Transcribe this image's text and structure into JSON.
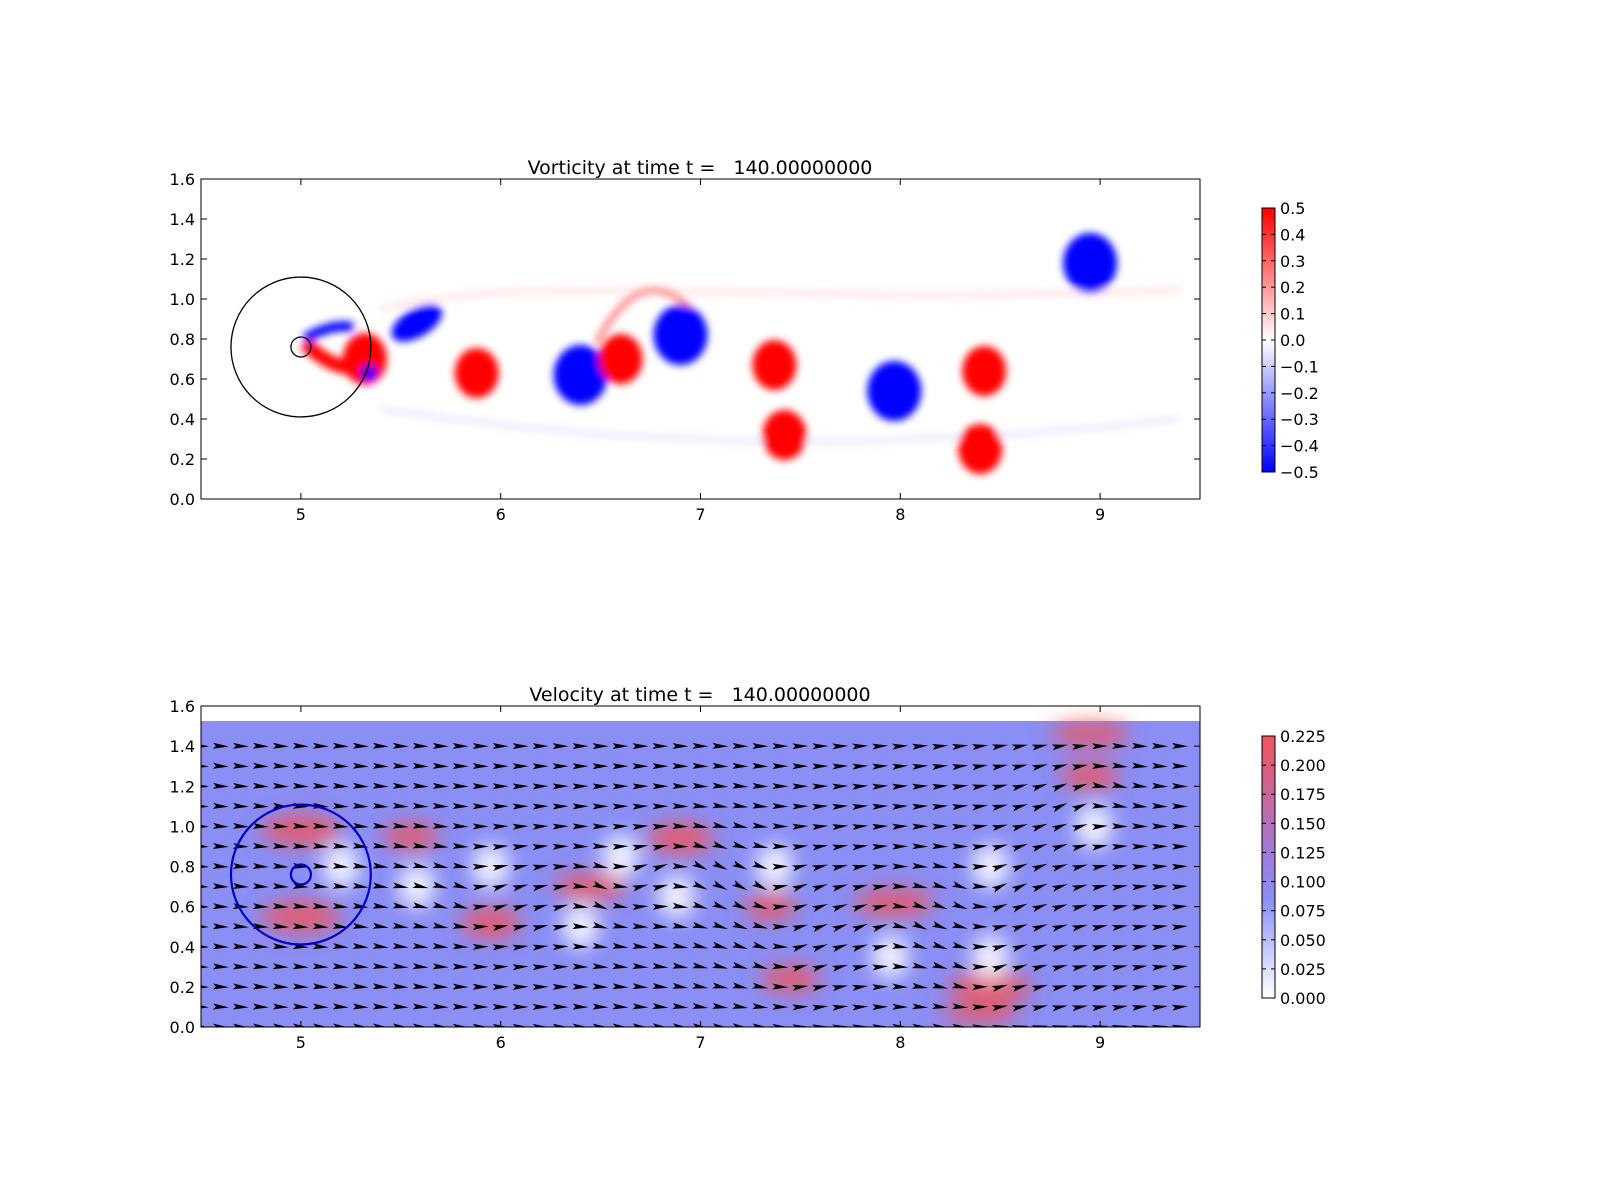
{
  "chart_data": [
    {
      "type": "heatmap",
      "title": "Vorticity at time t =   140.00000000",
      "xlim": [
        4.5,
        9.5
      ],
      "ylim": [
        0.0,
        1.6
      ],
      "xticks": [
        "5",
        "6",
        "7",
        "8",
        "9"
      ],
      "yticks": [
        "0.0",
        "0.2",
        "0.4",
        "0.6",
        "0.8",
        "1.0",
        "1.2",
        "1.4",
        "1.6"
      ],
      "colorbar": {
        "range": [
          -0.5,
          0.5
        ],
        "colormap": "bwr",
        "ticks": [
          "0.5",
          "0.4",
          "0.3",
          "0.2",
          "0.1",
          "0.0",
          "−0.1",
          "−0.2",
          "−0.3",
          "−0.4",
          "−0.5"
        ]
      },
      "vortices": [
        {
          "x": 5.88,
          "y": 0.63,
          "sign": "positive"
        },
        {
          "x": 6.4,
          "y": 0.62,
          "sign": "negative"
        },
        {
          "x": 6.6,
          "y": 0.7,
          "sign": "positive"
        },
        {
          "x": 6.9,
          "y": 0.82,
          "sign": "negative"
        },
        {
          "x": 7.37,
          "y": 0.67,
          "sign": "positive"
        },
        {
          "x": 7.42,
          "y": 0.32,
          "sign": "positive"
        },
        {
          "x": 7.97,
          "y": 0.54,
          "sign": "negative"
        },
        {
          "x": 8.42,
          "y": 0.64,
          "sign": "positive"
        },
        {
          "x": 8.4,
          "y": 0.25,
          "sign": "positive"
        },
        {
          "x": 8.95,
          "y": 1.18,
          "sign": "negative"
        }
      ],
      "circles": [
        {
          "x": 5.0,
          "y": 0.76,
          "r": 0.35,
          "color": "#000000"
        },
        {
          "x": 5.0,
          "y": 0.76,
          "r": 0.05,
          "color": "#000000"
        }
      ]
    },
    {
      "type": "heatmap",
      "title": "Velocity at time t =   140.00000000",
      "xlim": [
        4.5,
        9.5
      ],
      "ylim": [
        0.0,
        1.6
      ],
      "xticks": [
        "5",
        "6",
        "7",
        "8",
        "9"
      ],
      "yticks": [
        "0.0",
        "0.2",
        "0.4",
        "0.6",
        "0.8",
        "1.0",
        "1.2",
        "1.4",
        "1.6"
      ],
      "overlay": "quiver",
      "colorbar": {
        "range": [
          0.0,
          0.225
        ],
        "colormap": "white-blue-red",
        "ticks": [
          "0.225",
          "0.200",
          "0.175",
          "0.150",
          "0.125",
          "0.100",
          "0.075",
          "0.050",
          "0.025",
          "0.000"
        ]
      },
      "circles": [
        {
          "x": 5.0,
          "y": 0.76,
          "r": 0.35,
          "color": "#0000cc"
        },
        {
          "x": 5.0,
          "y": 0.76,
          "r": 0.05,
          "color": "#0000cc"
        }
      ]
    }
  ],
  "colors": {
    "positive": "#ff0000",
    "negative": "#0000ff",
    "background_velocity": "#8a8ef5",
    "high_velocity": "#f0545a",
    "low_velocity": "#ffffff"
  }
}
